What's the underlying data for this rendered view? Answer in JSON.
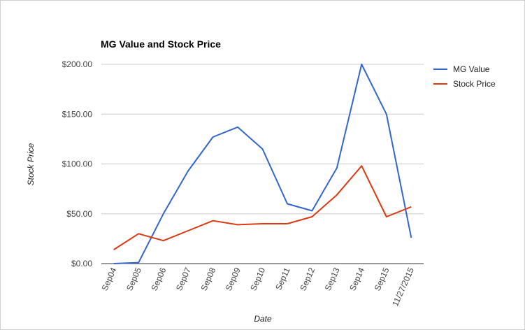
{
  "chart_data": {
    "type": "line",
    "title": "MG Value and Stock Price",
    "xlabel": "Date",
    "ylabel": "Stock Price",
    "categories": [
      "Sep04",
      "Sep05",
      "Sep06",
      "Sep07",
      "Sep08",
      "Sep09",
      "Sep10",
      "Sep11",
      "Sep12",
      "Sep13",
      "Sep14",
      "Sep15",
      "11/27/2015"
    ],
    "yticks": [
      "$0.00",
      "$50.00",
      "$100.00",
      "$150.00",
      "$200.00"
    ],
    "ylim": [
      0,
      200
    ],
    "grid": true,
    "legend_position": "right",
    "series": [
      {
        "name": "MG Value",
        "color": "#3366cc",
        "values": [
          0,
          1,
          50,
          93,
          127,
          137,
          115,
          60,
          53,
          96,
          200,
          150,
          26
        ]
      },
      {
        "name": "Stock Price",
        "color": "#dc3912",
        "values": [
          14,
          30,
          23,
          33,
          43,
          39,
          40,
          40,
          47,
          69,
          98,
          47,
          57
        ]
      }
    ]
  }
}
